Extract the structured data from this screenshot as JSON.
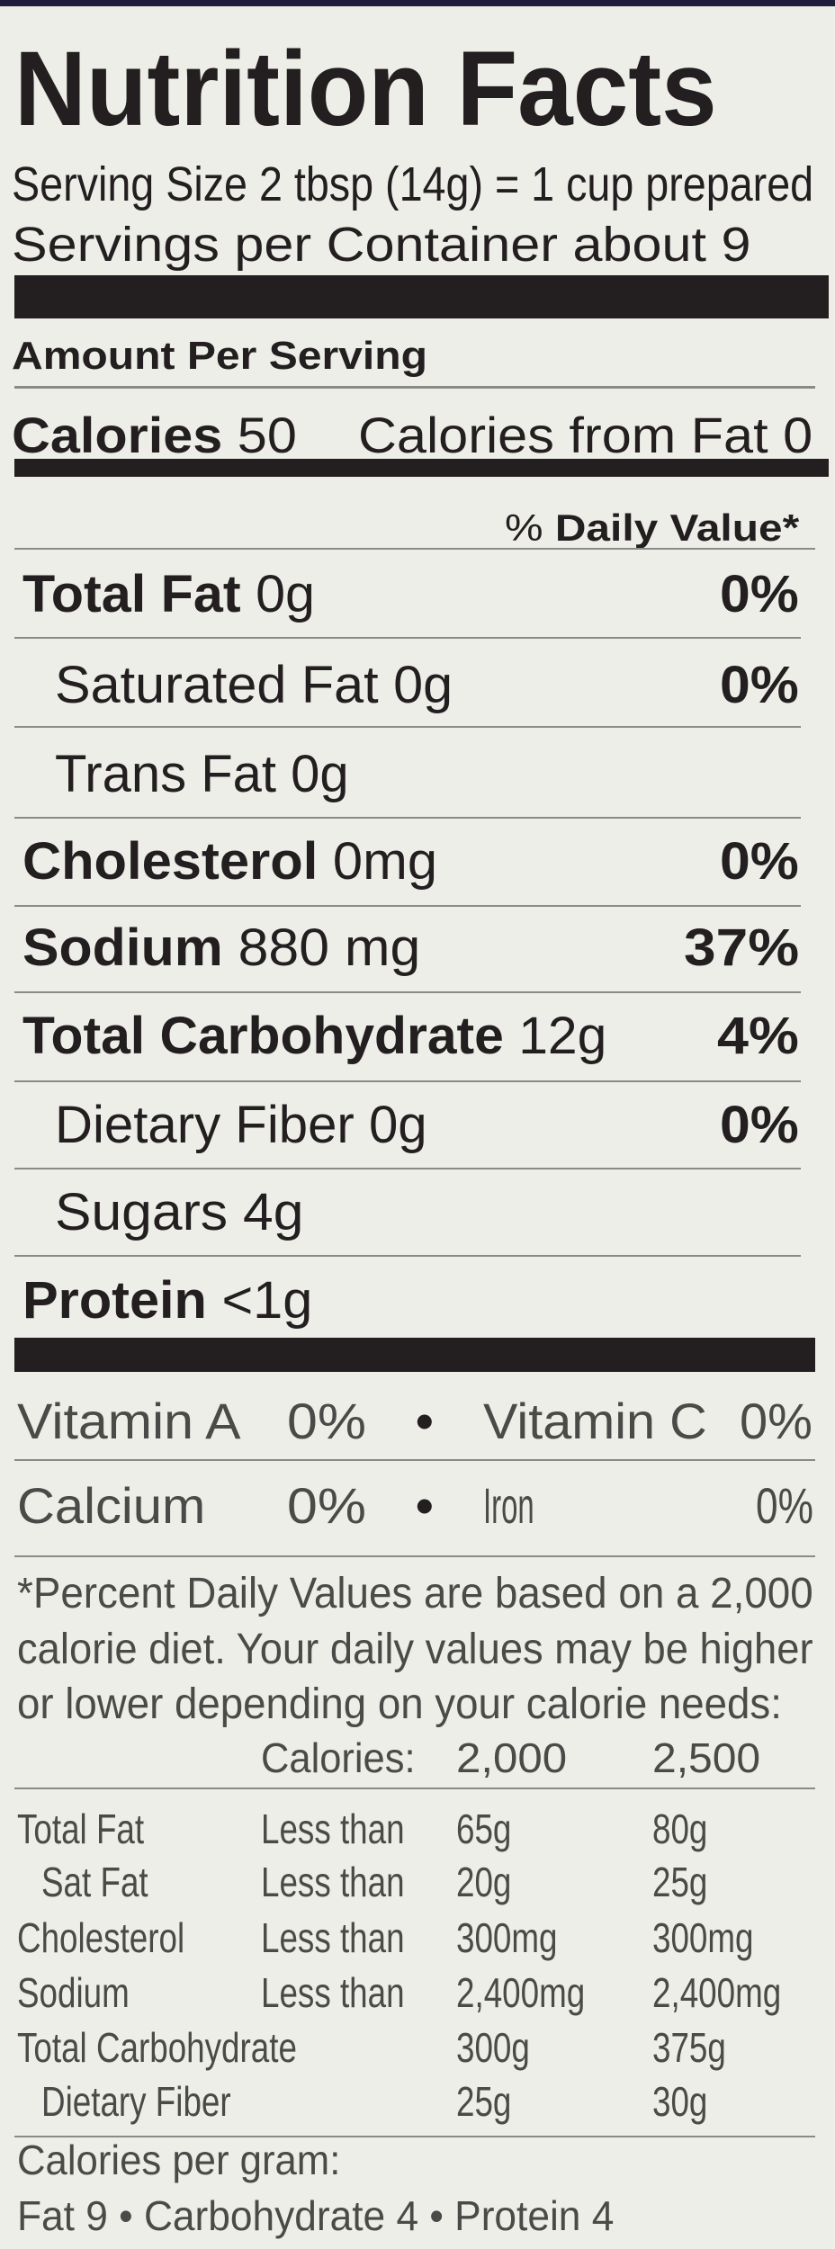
{
  "title": "Nutrition Facts",
  "serving_size": "Serving Size 2 tbsp (14g) = 1 cup prepared",
  "servings_per_container": "Servings per Container about 9",
  "amount_per_serving": "Amount Per Serving",
  "calories": {
    "label": "Calories",
    "value": "50",
    "from_fat": "Calories from Fat 0"
  },
  "daily_value_header": {
    "prefix": "%",
    "label": "Daily Value*"
  },
  "nutrients": [
    {
      "name": "Total Fat",
      "amount": "0g",
      "dv": "0%"
    },
    {
      "name": "Saturated Fat",
      "amount": "0g",
      "dv": "0%"
    },
    {
      "name": "Trans Fat",
      "amount": "0g",
      "dv": ""
    },
    {
      "name": "Cholesterol",
      "amount": "0mg",
      "dv": "0%"
    },
    {
      "name": "Sodium",
      "amount": "880 mg",
      "dv": "37%"
    },
    {
      "name": "Total Carbohydrate",
      "amount": "12g",
      "dv": "4%"
    },
    {
      "name": "Dietary Fiber",
      "amount": "0g",
      "dv": "0%"
    },
    {
      "name": "Sugars",
      "amount": "4g",
      "dv": ""
    },
    {
      "name": "Protein",
      "amount": "<1g",
      "dv": ""
    }
  ],
  "separator": "•",
  "vitamins": [
    {
      "name": "Vitamin A",
      "dv": "0%"
    },
    {
      "name": "Vitamin C",
      "dv": "0%"
    },
    {
      "name": "Calcium",
      "dv": "0%"
    },
    {
      "name": "Iron",
      "dv": "0%"
    }
  ],
  "footnote": [
    "*Percent Daily Values are based on a 2,000",
    "calorie diet. Your daily values may be higher",
    "or lower depending on your calorie needs:"
  ],
  "reference_table": {
    "header": [
      "Calories:",
      "2,000",
      "2,500"
    ],
    "rows": [
      {
        "nutrient": "Total Fat",
        "qualifier": "Less than",
        "v2000": "65g",
        "v2500": "80g"
      },
      {
        "nutrient": "Sat Fat",
        "qualifier": "Less than",
        "v2000": "20g",
        "v2500": "25g"
      },
      {
        "nutrient": "Cholesterol",
        "qualifier": "Less than",
        "v2000": "300mg",
        "v2500": "300mg"
      },
      {
        "nutrient": "Sodium",
        "qualifier": "Less than",
        "v2000": "2,400mg",
        "v2500": "2,400mg"
      },
      {
        "nutrient": "Total Carbohydrate",
        "qualifier": "",
        "v2000": "300g",
        "v2500": "375g"
      },
      {
        "nutrient": "Dietary Fiber",
        "qualifier": "",
        "v2000": "25g",
        "v2500": "30g"
      }
    ]
  },
  "calories_per_gram": {
    "label": "Calories per gram:",
    "values": "Fat 9 • Carbohydrate 4 • Protein 4"
  }
}
